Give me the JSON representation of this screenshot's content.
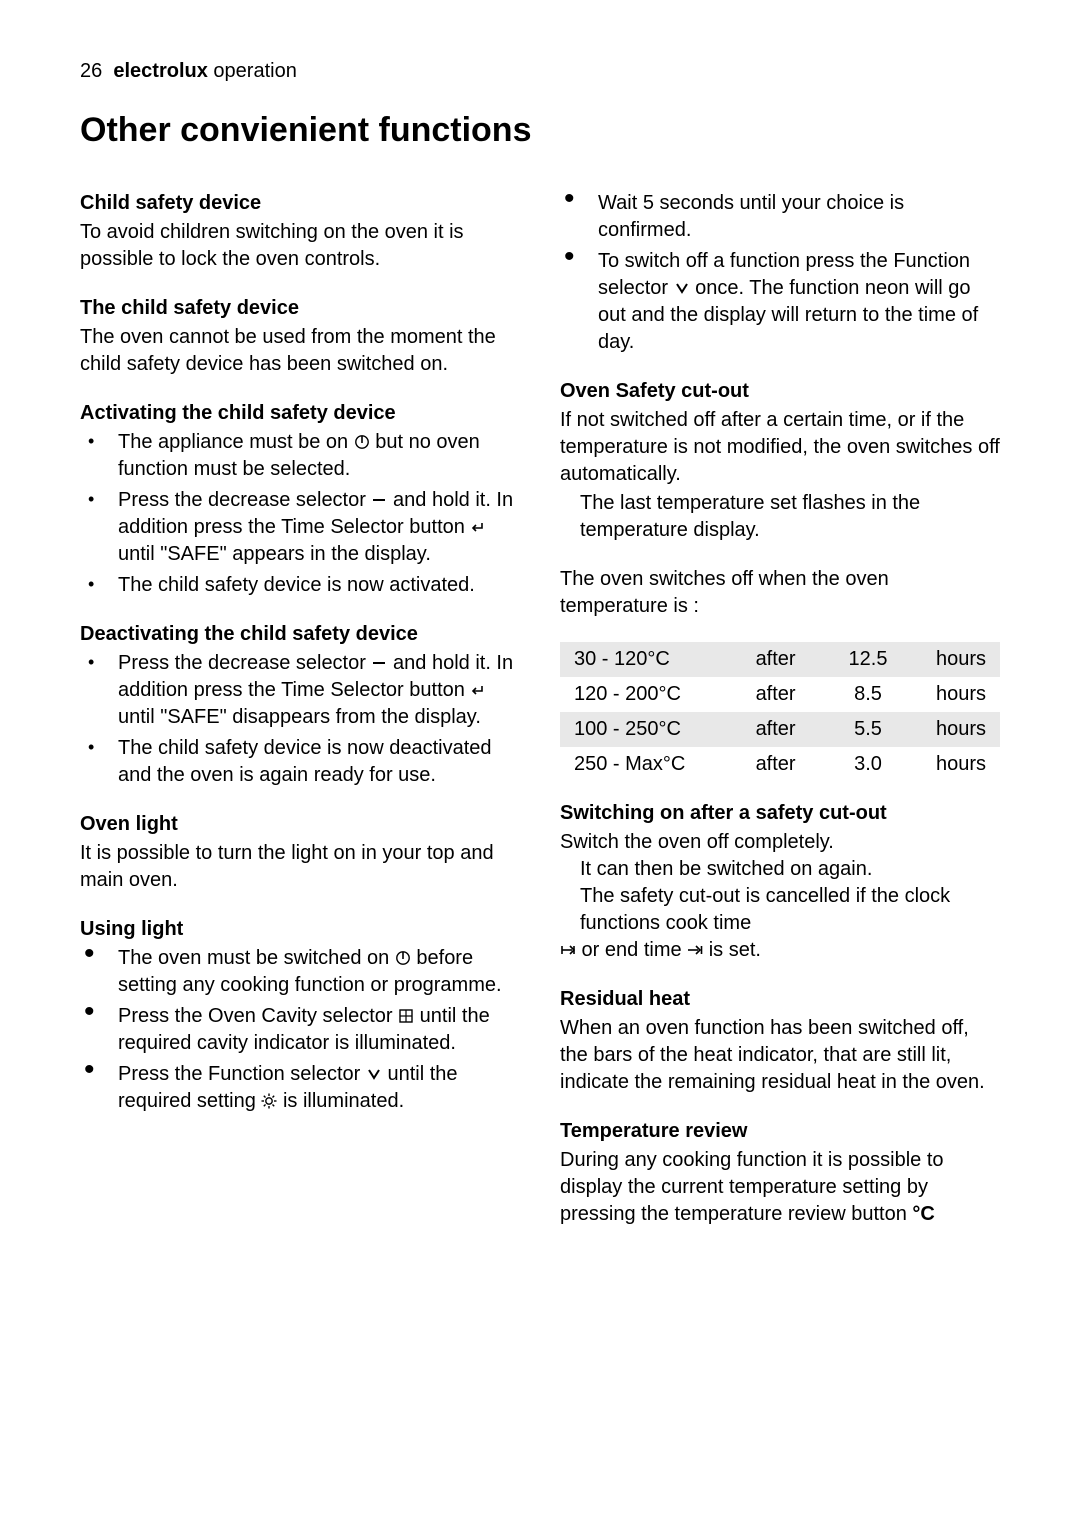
{
  "header": {
    "page_number": "26",
    "brand": "electrolux",
    "section": "operation"
  },
  "title": "Other convienient functions",
  "left": {
    "s1": {
      "head": "Child safety device",
      "body": "To avoid children switching on the oven it is possible to lock the oven controls."
    },
    "s2": {
      "head": "The child safety device",
      "body": "The oven cannot be used from the moment the child safety device has been switched on."
    },
    "s3": {
      "head": "Activating the child safety device",
      "b1a": "The appliance must be on ",
      "b1b": " but no oven function must be selected.",
      "b2a": "Press the decrease selector ",
      "b2b": " and hold it.  In addition press the Time Selector button ",
      "b2c": " until \"SAFE\" appears in the display.",
      "b3": "The child safety device is now activated."
    },
    "s4": {
      "head": "Deactivating the child safety device",
      "b1a": "Press the decrease selector ",
      "b1b": " and hold it.  In addition press the Time Selector button ",
      "b1c": " until \"SAFE\" disappears from the display.",
      "b2": "The child safety device is now deactivated and the oven is again ready for use."
    },
    "s5": {
      "head": "Oven light",
      "body": "It is possible to turn the light on in your top and main oven."
    },
    "s6": {
      "head": "Using light",
      "b1a": "The oven must be switched on ",
      "b1b": " before setting any cooking function or programme.",
      "b2a": "Press the Oven Cavity selector ",
      "b2b": " until the required cavity indicator is illuminated.",
      "b3a": "Press the Function selector ",
      "b3b": " until the required setting ",
      "b3c": " is illuminated."
    }
  },
  "right": {
    "s0": {
      "b1": "Wait 5 seconds until your choice is confirmed.",
      "b2a": "To switch off a function press the Function selector ",
      "b2b": " once.  The function neon will go out and the display will return to the time of day."
    },
    "s1": {
      "head": "Oven Safety cut-out",
      "p1": "If not switched off after a certain time, or if the temperature is not modified, the oven switches off automatically.",
      "p2": "The last temperature set flashes in the temperature display.",
      "p3": "The oven switches off when the oven temperature is :"
    },
    "table": {
      "rows": [
        {
          "range": "30 - 120°C",
          "after": "after",
          "hours": "12.5",
          "unit": "hours",
          "shade": true
        },
        {
          "range": "120 - 200°C",
          "after": "after",
          "hours": "8.5",
          "unit": "hours",
          "shade": false
        },
        {
          "range": "100 - 250°C",
          "after": "after",
          "hours": "5.5",
          "unit": "hours",
          "shade": true
        },
        {
          "range": "250 - Max°C",
          "after": "after",
          "hours": "3.0",
          "unit": "hours",
          "shade": false
        }
      ]
    },
    "s2": {
      "head": "Switching on after a safety cut-out",
      "p1": "Switch the oven off completely.",
      "p2": "It can then be switched on again.",
      "p3a": "The safety cut-out is cancelled if the clock functions cook  time ",
      "p3b": " or end  time ",
      "p3c": " is set."
    },
    "s3": {
      "head": "Residual heat",
      "body": "When an oven function has been switched off, the bars of the heat indicator, that are still lit, indicate the remaining residual heat in the oven."
    },
    "s4": {
      "head": "Temperature review",
      "body": "During any cooking function it is possible to display the current temperature setting by pressing the temperature review button ",
      "unit": "°C"
    }
  },
  "style": {
    "body_font_size": 20,
    "title_font_size": 34,
    "text_color": "#000000",
    "bg_color": "#ffffff",
    "table_shade": "#e8e8e8"
  }
}
